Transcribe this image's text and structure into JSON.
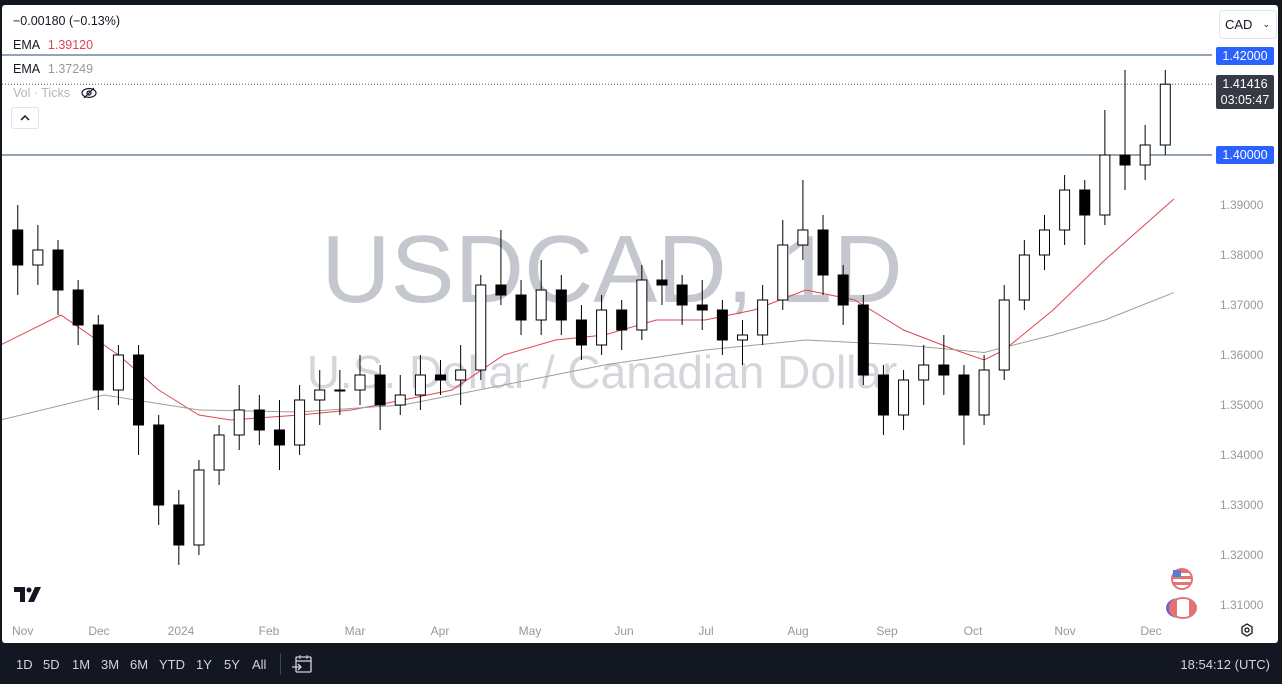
{
  "header": {
    "change": "−0.00180 (−0.13%)",
    "ema1_label": "EMA",
    "ema1_value": "1.39120",
    "ema1_color": "#e0454f",
    "ema2_label": "EMA",
    "ema2_value": "1.37249",
    "ema2_color": "#9e9e9e",
    "vol_label": "Vol · Ticks",
    "currency": "CAD"
  },
  "watermark": {
    "symbol": "USDCAD, 1D",
    "description": "U.S. Dollar / Canadian Dollar"
  },
  "price_labels": {
    "line_high": "1.42000",
    "line_low": "1.40000",
    "last_price": "1.41416",
    "countdown": "03:05:47"
  },
  "bottom_bar": {
    "ranges": [
      "1D",
      "5D",
      "1M",
      "3M",
      "6M",
      "YTD",
      "1Y",
      "5Y",
      "All"
    ],
    "clock": "18:54:12 (UTC)"
  },
  "chart_data": {
    "type": "candlestick",
    "symbol": "USDCAD",
    "interval": "1D",
    "ylim": [
      1.305,
      1.4265
    ],
    "y_ticks": [
      "1.31000",
      "1.32000",
      "1.33000",
      "1.34000",
      "1.35000",
      "1.36000",
      "1.37000",
      "1.38000",
      "1.39000"
    ],
    "x_ticks": [
      "Nov",
      "Dec",
      "2024",
      "Feb",
      "Mar",
      "Apr",
      "May",
      "Jun",
      "Jul",
      "Aug",
      "Sep",
      "Oct",
      "Nov",
      "Dec"
    ],
    "horizontal_lines": [
      1.42,
      1.4
    ],
    "last_price": 1.41416,
    "colors": {
      "up": "#ffffff",
      "down": "#000000",
      "outline": "#000000",
      "hline": "#2a4a6b"
    },
    "candles": [
      [
        "2023-11-03",
        1.385,
        1.39,
        1.372,
        1.378
      ],
      [
        "2023-11-10",
        1.378,
        1.386,
        1.374,
        1.381
      ],
      [
        "2023-11-17",
        1.381,
        1.383,
        1.368,
        1.373
      ],
      [
        "2023-11-24",
        1.373,
        1.375,
        1.362,
        1.366
      ],
      [
        "2023-12-01",
        1.366,
        1.368,
        1.349,
        1.353
      ],
      [
        "2023-12-08",
        1.353,
        1.362,
        1.35,
        1.36
      ],
      [
        "2023-12-15",
        1.36,
        1.362,
        1.34,
        1.346
      ],
      [
        "2023-12-22",
        1.346,
        1.348,
        1.326,
        1.33
      ],
      [
        "2023-12-29",
        1.33,
        1.333,
        1.318,
        1.322
      ],
      [
        "2024-01-05",
        1.322,
        1.339,
        1.32,
        1.337
      ],
      [
        "2024-01-12",
        1.337,
        1.346,
        1.334,
        1.344
      ],
      [
        "2024-01-19",
        1.344,
        1.354,
        1.341,
        1.349
      ],
      [
        "2024-01-26",
        1.349,
        1.352,
        1.342,
        1.345
      ],
      [
        "2024-02-02",
        1.345,
        1.351,
        1.337,
        1.342
      ],
      [
        "2024-02-09",
        1.342,
        1.354,
        1.34,
        1.351
      ],
      [
        "2024-02-16",
        1.351,
        1.357,
        1.346,
        1.353
      ],
      [
        "2024-02-23",
        1.353,
        1.357,
        1.348,
        1.353
      ],
      [
        "2024-03-01",
        1.353,
        1.36,
        1.35,
        1.356
      ],
      [
        "2024-03-08",
        1.356,
        1.358,
        1.345,
        1.35
      ],
      [
        "2024-03-15",
        1.35,
        1.356,
        1.348,
        1.352
      ],
      [
        "2024-03-22",
        1.352,
        1.36,
        1.349,
        1.356
      ],
      [
        "2024-03-29",
        1.356,
        1.359,
        1.352,
        1.355
      ],
      [
        "2024-04-05",
        1.355,
        1.362,
        1.35,
        1.357
      ],
      [
        "2024-04-12",
        1.357,
        1.376,
        1.355,
        1.374
      ],
      [
        "2024-04-19",
        1.374,
        1.385,
        1.37,
        1.372
      ],
      [
        "2024-04-26",
        1.372,
        1.375,
        1.364,
        1.367
      ],
      [
        "2024-05-03",
        1.367,
        1.379,
        1.364,
        1.373
      ],
      [
        "2024-05-10",
        1.373,
        1.376,
        1.364,
        1.367
      ],
      [
        "2024-05-17",
        1.367,
        1.37,
        1.359,
        1.362
      ],
      [
        "2024-05-24",
        1.362,
        1.372,
        1.36,
        1.369
      ],
      [
        "2024-05-31",
        1.369,
        1.371,
        1.361,
        1.365
      ],
      [
        "2024-06-07",
        1.365,
        1.378,
        1.363,
        1.375
      ],
      [
        "2024-06-14",
        1.375,
        1.379,
        1.37,
        1.374
      ],
      [
        "2024-06-21",
        1.374,
        1.376,
        1.366,
        1.37
      ],
      [
        "2024-06-28",
        1.37,
        1.375,
        1.365,
        1.369
      ],
      [
        "2024-07-05",
        1.369,
        1.371,
        1.36,
        1.363
      ],
      [
        "2024-07-12",
        1.363,
        1.367,
        1.358,
        1.364
      ],
      [
        "2024-07-19",
        1.364,
        1.374,
        1.362,
        1.371
      ],
      [
        "2024-07-26",
        1.371,
        1.387,
        1.369,
        1.382
      ],
      [
        "2024-08-02",
        1.382,
        1.395,
        1.379,
        1.385
      ],
      [
        "2024-08-09",
        1.385,
        1.388,
        1.372,
        1.376
      ],
      [
        "2024-08-16",
        1.376,
        1.378,
        1.366,
        1.37
      ],
      [
        "2024-08-23",
        1.37,
        1.372,
        1.354,
        1.356
      ],
      [
        "2024-08-30",
        1.356,
        1.358,
        1.344,
        1.348
      ],
      [
        "2024-09-06",
        1.348,
        1.357,
        1.345,
        1.355
      ],
      [
        "2024-09-13",
        1.355,
        1.362,
        1.35,
        1.358
      ],
      [
        "2024-09-20",
        1.358,
        1.364,
        1.352,
        1.356
      ],
      [
        "2024-09-27",
        1.356,
        1.358,
        1.342,
        1.348
      ],
      [
        "2024-10-04",
        1.348,
        1.36,
        1.346,
        1.357
      ],
      [
        "2024-10-11",
        1.357,
        1.374,
        1.355,
        1.371
      ],
      [
        "2024-10-18",
        1.371,
        1.383,
        1.369,
        1.38
      ],
      [
        "2024-10-25",
        1.38,
        1.388,
        1.377,
        1.385
      ],
      [
        "2024-11-01",
        1.385,
        1.396,
        1.382,
        1.393
      ],
      [
        "2024-11-08",
        1.393,
        1.395,
        1.382,
        1.388
      ],
      [
        "2024-11-15",
        1.388,
        1.409,
        1.386,
        1.4
      ],
      [
        "2024-11-22",
        1.4,
        1.417,
        1.393,
        1.398
      ],
      [
        "2024-11-29",
        1.398,
        1.406,
        1.395,
        1.402
      ],
      [
        "2024-12-06",
        1.402,
        1.417,
        1.4,
        1.41416
      ]
    ],
    "series": [
      {
        "name": "EMA",
        "color": "#e0454f",
        "points": [
          [
            "2023-10-28",
            1.362
          ],
          [
            "2023-11-18",
            1.368
          ],
          [
            "2023-12-08",
            1.36
          ],
          [
            "2023-12-22",
            1.353
          ],
          [
            "2024-01-05",
            1.348
          ],
          [
            "2024-01-16",
            1.347
          ],
          [
            "2024-02-09",
            1.348
          ],
          [
            "2024-02-27",
            1.349
          ],
          [
            "2024-03-16",
            1.351
          ],
          [
            "2024-04-02",
            1.353
          ],
          [
            "2024-04-20",
            1.36
          ],
          [
            "2024-05-08",
            1.363
          ],
          [
            "2024-05-25",
            1.364
          ],
          [
            "2024-06-12",
            1.367
          ],
          [
            "2024-06-29",
            1.367
          ],
          [
            "2024-07-16",
            1.369
          ],
          [
            "2024-08-03",
            1.373
          ],
          [
            "2024-08-20",
            1.371
          ],
          [
            "2024-09-06",
            1.365
          ],
          [
            "2024-09-24",
            1.361
          ],
          [
            "2024-10-04",
            1.359
          ],
          [
            "2024-10-11",
            1.361
          ],
          [
            "2024-10-28",
            1.369
          ],
          [
            "2024-11-15",
            1.379
          ],
          [
            "2024-12-09",
            1.3912
          ]
        ]
      },
      {
        "name": "EMA",
        "color": "#9e9e9e",
        "points": [
          [
            "2023-10-28",
            1.347
          ],
          [
            "2023-12-03",
            1.352
          ],
          [
            "2024-01-05",
            1.349
          ],
          [
            "2024-02-09",
            1.3486
          ],
          [
            "2024-03-16",
            1.35
          ],
          [
            "2024-04-20",
            1.354
          ],
          [
            "2024-05-25",
            1.358
          ],
          [
            "2024-06-29",
            1.361
          ],
          [
            "2024-08-03",
            1.363
          ],
          [
            "2024-09-06",
            1.362
          ],
          [
            "2024-10-04",
            1.3605
          ],
          [
            "2024-10-28",
            1.364
          ],
          [
            "2024-11-15",
            1.367
          ],
          [
            "2024-12-09",
            1.37249
          ]
        ]
      }
    ]
  }
}
